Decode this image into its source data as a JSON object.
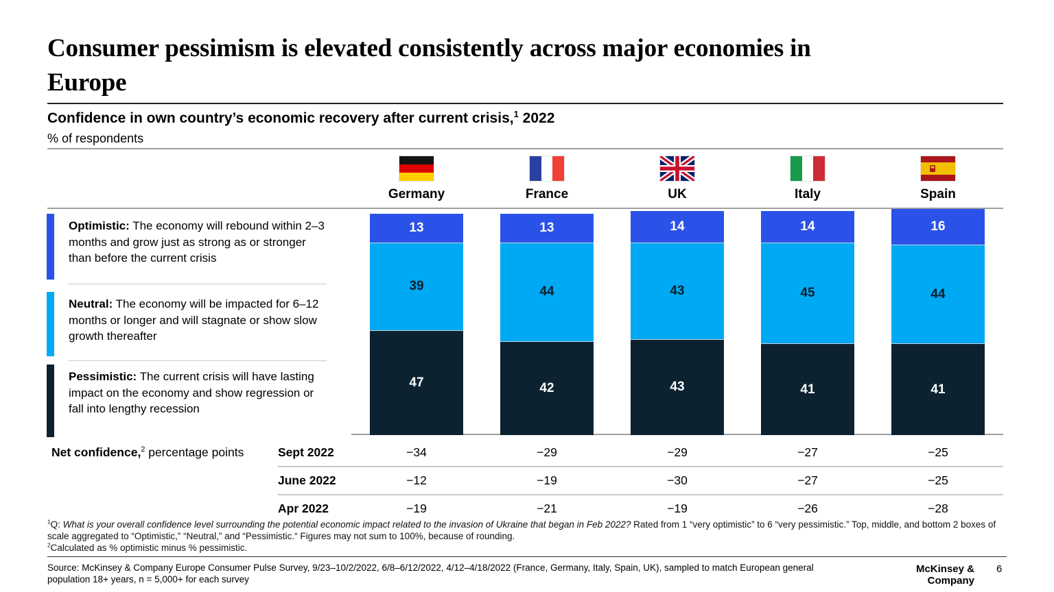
{
  "slide": {
    "title": "Consumer pessimism is elevated consistently across major economies in Europe",
    "subtitle": "Confidence in own country’s economic recovery after current crisis,",
    "subtitle_superscript": "1",
    "subtitle_suffix": " 2022",
    "unit_label": "% of respondents"
  },
  "legend": [
    {
      "term": "Optimistic:",
      "description": " The economy will rebound within 2–3 months and grow just as strong as or stronger than before the current crisis",
      "color": "#2B52E8"
    },
    {
      "term": "Neutral:",
      "description": " The economy will be impacted for 6–12 months or longer and will stagnate or show slow growth thereafter",
      "color": "#00A9F4"
    },
    {
      "term": "Pessimistic:",
      "description": " The current crisis will have lasting impact on the economy and show regression or fall into lengthy recession",
      "color": "#0C2231"
    }
  ],
  "chart_data": {
    "type": "bar",
    "stacked": true,
    "title": "Confidence in own country’s economic recovery after current crisis, 2022",
    "ylabel": "% of respondents",
    "ylim": [
      0,
      100
    ],
    "categories": [
      "Germany",
      "France",
      "UK",
      "Italy",
      "Spain"
    ],
    "flags": [
      "germany-flag-icon",
      "france-flag-icon",
      "uk-flag-icon",
      "italy-flag-icon",
      "spain-flag-icon"
    ],
    "series": [
      {
        "name": "Optimistic",
        "color": "#2B52E8",
        "label_color": "#FFFFFF",
        "values": [
          13,
          13,
          14,
          14,
          16
        ]
      },
      {
        "name": "Neutral",
        "color": "#00A9F4",
        "label_color": "#0B1F2A",
        "values": [
          39,
          44,
          43,
          45,
          44
        ]
      },
      {
        "name": "Pessimistic",
        "color": "#0C2231",
        "label_color": "#FFFFFF",
        "values": [
          47,
          42,
          43,
          41,
          41
        ]
      }
    ]
  },
  "net_confidence": {
    "label_bold": "Net confidence,",
    "label_superscript": "2",
    "label_rest": " percentage points",
    "rows": [
      {
        "period": "Sept 2022",
        "values": [
          "−34",
          "−29",
          "−29",
          "−27",
          "−25"
        ]
      },
      {
        "period": "June 2022",
        "values": [
          "−12",
          "−19",
          "−30",
          "−27",
          "−25"
        ]
      },
      {
        "period": "Apr 2022",
        "values": [
          "−19",
          "−21",
          "−19",
          "−26",
          "−28"
        ]
      }
    ]
  },
  "footnotes": {
    "fn1_marker": "1",
    "fn1_prefix": "Q: ",
    "fn1_italic": "What is your overall confidence level surrounding the potential economic impact related to the invasion of Ukraine that began in Feb 2022?",
    "fn1_rest": " Rated from 1 “very optimistic” to 6 “very pessimistic.” Top, middle, and bottom 2 boxes of scale aggregated to “Optimistic,” “Neutral,” and “Pessimistic.“ Figures may not sum to 100%, because of rounding.",
    "fn2_marker": "2",
    "fn2_text": "Calculated as % optimistic minus % pessimistic."
  },
  "source_text": "Source: McKinsey & Company Europe Consumer Pulse Survey, 9/23–10/2/2022, 6/8–6/12/2022, 4/12–4/18/2022 (France, Germany, Italy, Spain, UK), sampled to match European general population 18+ years, n = 5,000+ for each survey",
  "footer": {
    "brand": "McKinsey & Company",
    "page": "6"
  }
}
